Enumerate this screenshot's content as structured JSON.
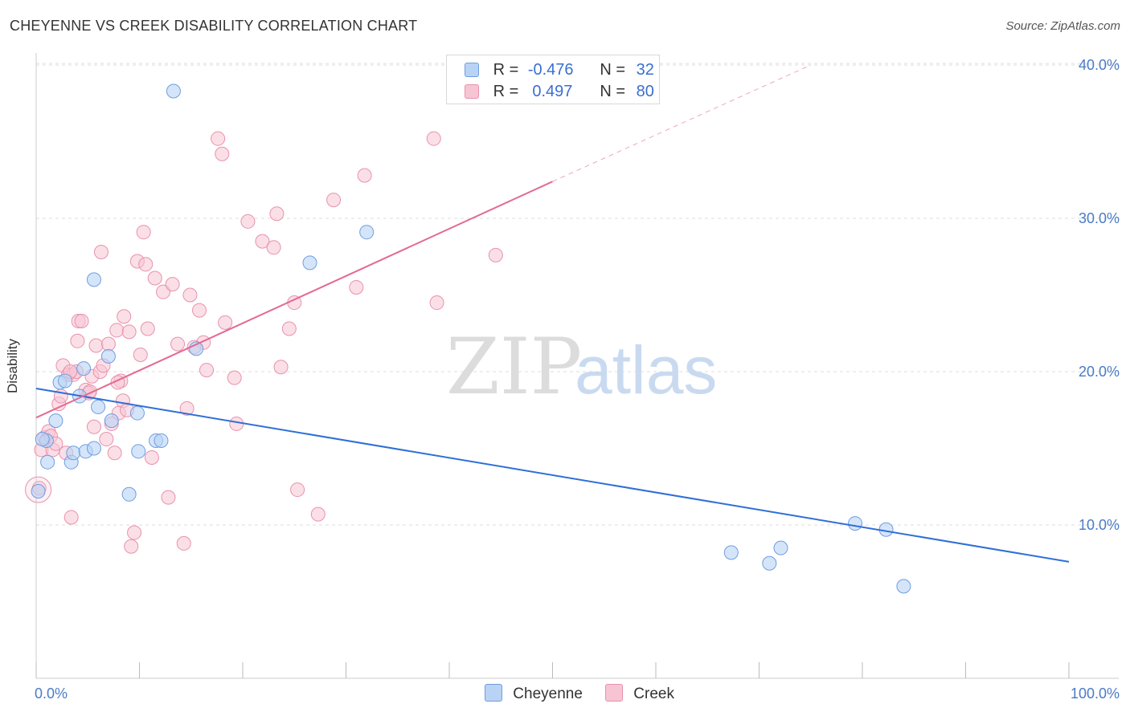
{
  "title": "CHEYENNE VS CREEK DISABILITY CORRELATION CHART",
  "source": "Source: ZipAtlas.com",
  "watermark": {
    "zip": "ZIP",
    "atlas": "atlas"
  },
  "colors": {
    "cheyenne_fill": "#b9d3f5",
    "cheyenne_stroke": "#6f9de0",
    "cheyenne_line": "#2f6fd6",
    "creek_fill": "#f7c4d4",
    "creek_stroke": "#e892ad",
    "creek_line": "#e36a93",
    "grid": "#dddddd",
    "axis_text": "#4a7bc8"
  },
  "legend": {
    "rows": [
      {
        "r_label": "R =",
        "r_value": "-0.476",
        "n_label": "N =",
        "n_value": "32"
      },
      {
        "r_label": "R =",
        "r_value": " 0.497",
        "n_label": "N =",
        "n_value": "80"
      }
    ]
  },
  "bottom_legend": {
    "cheyenne": "Cheyenne",
    "creek": "Creek"
  },
  "chart_data": {
    "type": "scatter",
    "title": "CHEYENNE VS CREEK DISABILITY CORRELATION CHART",
    "xlabel": "",
    "ylabel": "Disability",
    "xlim": [
      0,
      100
    ],
    "ylim": [
      0,
      42
    ],
    "x_ticks": [
      0,
      10,
      20,
      30,
      40,
      50,
      60,
      70,
      80,
      90,
      100
    ],
    "x_tick_labels": {
      "0": "0.0%",
      "100": "100.0%"
    },
    "y_ticks": [
      10,
      20,
      30,
      40
    ],
    "y_tick_labels": [
      "10.0%",
      "20.0%",
      "30.0%",
      "40.0%"
    ],
    "grid": true,
    "legend_position": "top-center",
    "series": [
      {
        "name": "Cheyenne",
        "trend": {
          "x": [
            0,
            100
          ],
          "y": [
            18.9,
            7.6
          ]
        },
        "points": [
          [
            0.2,
            12.2
          ],
          [
            1.0,
            15.5
          ],
          [
            1.1,
            14.1
          ],
          [
            1.9,
            16.8
          ],
          [
            2.3,
            19.3
          ],
          [
            2.8,
            19.4
          ],
          [
            3.4,
            14.1
          ],
          [
            3.6,
            14.7
          ],
          [
            4.2,
            18.4
          ],
          [
            4.6,
            20.2
          ],
          [
            4.8,
            14.8
          ],
          [
            5.6,
            15.0
          ],
          [
            5.6,
            26.0
          ],
          [
            6.0,
            17.7
          ],
          [
            7.0,
            21.0
          ],
          [
            7.3,
            16.8
          ],
          [
            9.0,
            12.0
          ],
          [
            9.8,
            17.3
          ],
          [
            9.9,
            14.8
          ],
          [
            11.6,
            15.5
          ],
          [
            12.1,
            15.5
          ],
          [
            13.3,
            38.3
          ],
          [
            15.5,
            21.5
          ],
          [
            26.5,
            27.1
          ],
          [
            32.0,
            29.1
          ],
          [
            67.3,
            8.2
          ],
          [
            71.0,
            7.5
          ],
          [
            72.1,
            8.5
          ],
          [
            79.3,
            10.1
          ],
          [
            82.3,
            9.7
          ],
          [
            84.0,
            6.0
          ],
          [
            0.6,
            15.6
          ]
        ]
      },
      {
        "name": "Creek",
        "trend": {
          "x": [
            0,
            50
          ],
          "y": [
            17.0,
            32.4
          ]
        },
        "trend_dashed": {
          "x": [
            50,
            75
          ],
          "y": [
            32.4,
            40.0
          ]
        },
        "points": [
          [
            0.3,
            12.4
          ],
          [
            0.5,
            14.9
          ],
          [
            0.8,
            15.7
          ],
          [
            1.2,
            16.1
          ],
          [
            1.4,
            15.8
          ],
          [
            1.6,
            14.9
          ],
          [
            1.9,
            15.3
          ],
          [
            2.2,
            17.9
          ],
          [
            2.4,
            18.4
          ],
          [
            2.6,
            20.4
          ],
          [
            2.9,
            14.7
          ],
          [
            3.1,
            19.8
          ],
          [
            3.4,
            10.5
          ],
          [
            3.6,
            19.8
          ],
          [
            3.9,
            20.0
          ],
          [
            4.0,
            22.0
          ],
          [
            4.1,
            23.3
          ],
          [
            4.4,
            23.3
          ],
          [
            4.8,
            18.8
          ],
          [
            5.1,
            18.6
          ],
          [
            5.4,
            19.7
          ],
          [
            5.6,
            16.4
          ],
          [
            5.8,
            21.7
          ],
          [
            6.2,
            20.0
          ],
          [
            6.3,
            27.8
          ],
          [
            6.5,
            20.4
          ],
          [
            6.8,
            15.6
          ],
          [
            7.0,
            21.8
          ],
          [
            7.3,
            16.6
          ],
          [
            7.6,
            14.7
          ],
          [
            7.8,
            22.7
          ],
          [
            8.0,
            17.3
          ],
          [
            8.2,
            19.4
          ],
          [
            8.4,
            18.1
          ],
          [
            8.5,
            23.6
          ],
          [
            8.8,
            17.5
          ],
          [
            9.0,
            22.6
          ],
          [
            9.2,
            8.6
          ],
          [
            9.5,
            9.5
          ],
          [
            9.8,
            27.2
          ],
          [
            10.1,
            21.1
          ],
          [
            10.4,
            29.1
          ],
          [
            10.6,
            27.0
          ],
          [
            10.8,
            22.8
          ],
          [
            11.2,
            14.4
          ],
          [
            11.5,
            26.1
          ],
          [
            12.3,
            25.2
          ],
          [
            12.8,
            11.8
          ],
          [
            13.2,
            25.7
          ],
          [
            13.7,
            21.8
          ],
          [
            14.3,
            8.8
          ],
          [
            14.6,
            17.6
          ],
          [
            14.9,
            25.0
          ],
          [
            15.8,
            24.0
          ],
          [
            16.2,
            21.9
          ],
          [
            16.5,
            20.1
          ],
          [
            17.6,
            35.2
          ],
          [
            18.0,
            34.2
          ],
          [
            18.3,
            23.2
          ],
          [
            19.2,
            19.6
          ],
          [
            19.4,
            16.6
          ],
          [
            20.5,
            29.8
          ],
          [
            21.9,
            28.5
          ],
          [
            23.0,
            28.1
          ],
          [
            23.3,
            30.3
          ],
          [
            23.7,
            20.3
          ],
          [
            24.5,
            22.8
          ],
          [
            25.0,
            24.5
          ],
          [
            25.3,
            12.3
          ],
          [
            27.3,
            10.7
          ],
          [
            28.8,
            31.2
          ],
          [
            31.0,
            25.5
          ],
          [
            31.8,
            32.8
          ],
          [
            38.5,
            35.2
          ],
          [
            38.8,
            24.5
          ],
          [
            44.5,
            27.6
          ],
          [
            5.2,
            18.7
          ],
          [
            7.9,
            19.3
          ],
          [
            3.3,
            20.0
          ],
          [
            15.3,
            21.6
          ]
        ]
      }
    ]
  }
}
